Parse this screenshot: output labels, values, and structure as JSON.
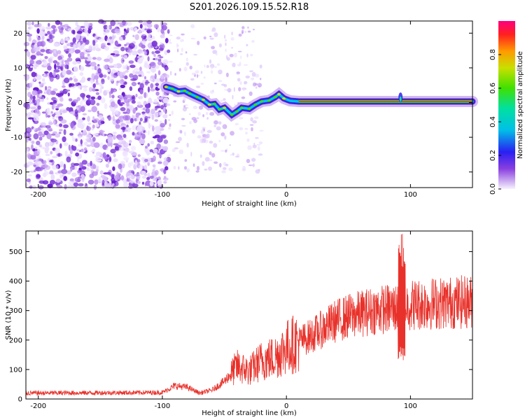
{
  "title": "S201.2026.109.15.52.R18",
  "spectrogram": {
    "type": "heatmap",
    "xlabel": "Height of straight line (km)",
    "ylabel": "Frequency (Hz)",
    "xlim": [
      -210,
      150
    ],
    "ylim": [
      -24.5,
      23.5
    ],
    "xticks": [
      -200,
      -100,
      0,
      100
    ],
    "yticks": [
      -20,
      -10,
      0,
      10,
      20
    ],
    "colorbar": {
      "label": "Normalized spectral amplitude",
      "range": [
        0,
        1
      ],
      "ticks": [
        0.0,
        0.2,
        0.4,
        0.6,
        0.8
      ]
    },
    "ridge_points": [
      {
        "x": -97,
        "y": 4.5
      },
      {
        "x": -92,
        "y": 4.0
      },
      {
        "x": -87,
        "y": 3.2
      },
      {
        "x": -82,
        "y": 3.4
      },
      {
        "x": -78,
        "y": 2.6
      },
      {
        "x": -72,
        "y": 1.6
      },
      {
        "x": -67,
        "y": 0.8
      },
      {
        "x": -62,
        "y": -0.6
      },
      {
        "x": -58,
        "y": -0.4
      },
      {
        "x": -54,
        "y": -2.0
      },
      {
        "x": -50,
        "y": -1.5
      },
      {
        "x": -44,
        "y": -3.5
      },
      {
        "x": -40,
        "y": -2.6
      },
      {
        "x": -36,
        "y": -1.5
      },
      {
        "x": -30,
        "y": -1.8
      },
      {
        "x": -25,
        "y": -0.6
      },
      {
        "x": -20,
        "y": 0.3
      },
      {
        "x": -14,
        "y": 0.6
      },
      {
        "x": -9,
        "y": 1.6
      },
      {
        "x": -6,
        "y": 2.4
      },
      {
        "x": -2,
        "y": 1.2
      },
      {
        "x": 3,
        "y": 0.5
      },
      {
        "x": 10,
        "y": 0.3
      },
      {
        "x": 150,
        "y": 0.3
      }
    ],
    "spike_x": 92
  },
  "snr": {
    "type": "line",
    "xlabel": "Height of straight line (km)",
    "ylabel": "SNR (10 * v/v)",
    "xlim": [
      -210,
      150
    ],
    "ylim": [
      0,
      570
    ],
    "xticks": [
      -200,
      -100,
      0,
      100
    ],
    "yticks": [
      0,
      100,
      200,
      300,
      400,
      500
    ],
    "line_color": "#e8312a",
    "trend": [
      {
        "x": -210,
        "y": 20
      },
      {
        "x": -100,
        "y": 22
      },
      {
        "x": -90,
        "y": 45
      },
      {
        "x": -80,
        "y": 40
      },
      {
        "x": -70,
        "y": 20
      },
      {
        "x": -60,
        "y": 30
      },
      {
        "x": -50,
        "y": 60
      },
      {
        "x": -40,
        "y": 110
      },
      {
        "x": -30,
        "y": 95
      },
      {
        "x": -20,
        "y": 130
      },
      {
        "x": -10,
        "y": 140
      },
      {
        "x": 0,
        "y": 175
      },
      {
        "x": 10,
        "y": 195
      },
      {
        "x": 20,
        "y": 215
      },
      {
        "x": 30,
        "y": 240
      },
      {
        "x": 40,
        "y": 265
      },
      {
        "x": 50,
        "y": 280
      },
      {
        "x": 60,
        "y": 290
      },
      {
        "x": 70,
        "y": 300
      },
      {
        "x": 80,
        "y": 305
      },
      {
        "x": 90,
        "y": 310
      },
      {
        "x": 100,
        "y": 320
      },
      {
        "x": 120,
        "y": 325
      },
      {
        "x": 150,
        "y": 330
      }
    ],
    "spike": {
      "x": 93,
      "max": 565,
      "min": 120
    }
  }
}
